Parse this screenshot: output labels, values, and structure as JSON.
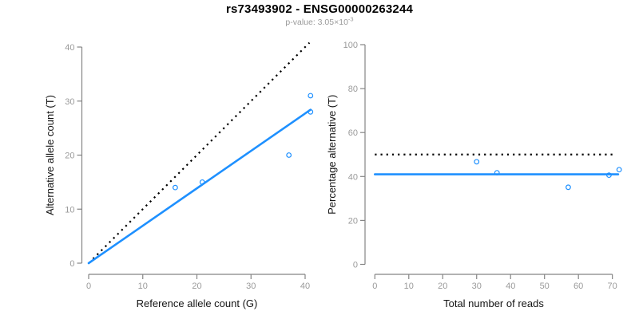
{
  "header": {
    "title": "rs73493902 - ENSG00000263244",
    "subtitle_label": "p-value: ",
    "subtitle_mantissa": "3.05×10",
    "subtitle_exponent": "-3"
  },
  "colors": {
    "accent_blue": "#1E90FF",
    "reference_black": "#000000",
    "axis_line": "#858585",
    "tick_label": "#9a9a9a",
    "axis_title": "#141414",
    "subtitle_gray": "#9a9a9a"
  },
  "chart_data": [
    {
      "type": "scatter",
      "title": "",
      "xlabel": "Reference allele count (G)",
      "ylabel": "Alternative allele count (T)",
      "xlim": [
        0,
        41
      ],
      "ylim": [
        0,
        41
      ],
      "xticks": [
        0,
        10,
        20,
        30,
        40
      ],
      "yticks": [
        0,
        10,
        20,
        30,
        40
      ],
      "grid": false,
      "legend": "none",
      "points": [
        [
          16,
          14
        ],
        [
          21,
          15
        ],
        [
          37,
          20
        ],
        [
          41,
          28
        ],
        [
          41,
          31
        ]
      ],
      "lines": [
        {
          "name": "identity-reference-line",
          "style": "dotted",
          "color": "#000000",
          "x1": 0.8,
          "y1": 0.8,
          "x2": 40.8,
          "y2": 40.8
        },
        {
          "name": "fitted-ratio-line",
          "style": "solid",
          "color": "#1E90FF",
          "x1": 0,
          "y1": 0,
          "x2": 41,
          "y2": 28.4
        }
      ]
    },
    {
      "type": "scatter",
      "title": "",
      "xlabel": "Total number of reads",
      "ylabel": "Percentage alternative (T)",
      "xlim": [
        0,
        72
      ],
      "ylim": [
        0,
        100
      ],
      "xticks": [
        0,
        10,
        20,
        30,
        40,
        50,
        60,
        70
      ],
      "yticks": [
        0,
        20,
        40,
        60,
        80,
        100
      ],
      "grid": false,
      "legend": "none",
      "points": [
        [
          30,
          46.7
        ],
        [
          36,
          41.7
        ],
        [
          57,
          35.1
        ],
        [
          69,
          40.6
        ],
        [
          72,
          43.1
        ]
      ],
      "lines": [
        {
          "name": "fifty-percent-reference-line",
          "style": "dotted",
          "color": "#000000",
          "x1": 0,
          "y1": 50,
          "x2": 70.5,
          "y2": 50
        },
        {
          "name": "mean-percentage-line",
          "style": "solid",
          "color": "#1E90FF",
          "x1": 0,
          "y1": 41,
          "x2": 71.7,
          "y2": 41
        }
      ]
    }
  ]
}
